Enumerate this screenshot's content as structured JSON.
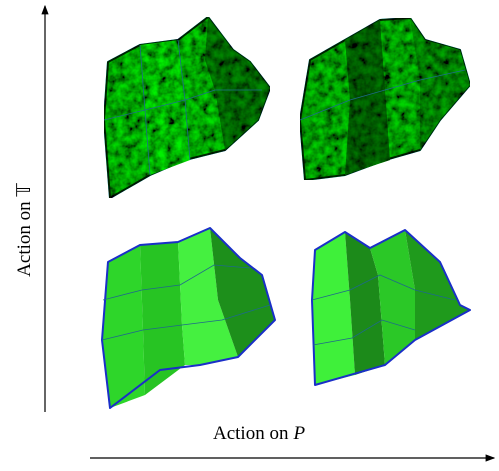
{
  "x_axis_label": "Action on",
  "x_axis_symbol": "P",
  "y_axis_label": "Action on 𝕋"
}
